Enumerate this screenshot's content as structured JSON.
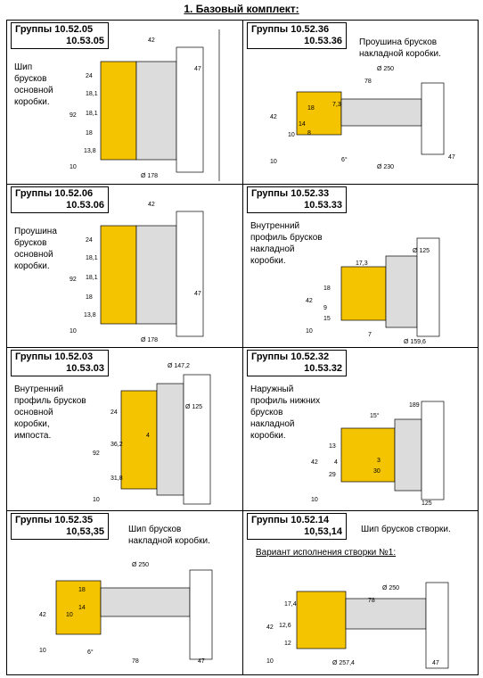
{
  "title": "1. Базовый комплект:",
  "panels": [
    {
      "group": "Группы 10.52.05",
      "group2": "10.53.05",
      "desc": [
        "Шип",
        "брусков",
        "основной",
        "коробки."
      ],
      "dims": [
        "42",
        "47",
        "24",
        "18,1",
        "18,1",
        "18",
        "13,8",
        "92",
        "10",
        "Ø 178"
      ]
    },
    {
      "group": "Группы 10.52.36",
      "group2": "10.53.36",
      "desc": [
        "Проушина брусков",
        "накладной коробки."
      ],
      "dims": [
        "Ø 250",
        "78",
        "7,3",
        "18",
        "14",
        "10",
        "8",
        "42",
        "10",
        "6°",
        "Ø 230",
        "47"
      ]
    },
    {
      "group": "Группы 10.52.06",
      "group2": "10.53.06",
      "desc": [
        "Проушина",
        "брусков",
        "основной",
        "коробки."
      ],
      "dims": [
        "42",
        "47",
        "24",
        "18,1",
        "18,1",
        "18",
        "13,8",
        "92",
        "10",
        "Ø 178"
      ]
    },
    {
      "group": "Группы 10.52.33",
      "group2": "10.53.33",
      "desc": [
        "Внутренний",
        "профиль брусков",
        "накладной",
        "коробки."
      ],
      "dims": [
        "Ø 125",
        "17,3",
        "18",
        "9",
        "15",
        "42",
        "10",
        "7",
        "Ø 159,6"
      ]
    },
    {
      "group": "Группы 10.52.03",
      "group2": "10.53.03",
      "desc": [
        "Внутренний",
        "профиль брусков",
        "основной",
        "коробки,",
        "импоста."
      ],
      "dims": [
        "Ø 147,2",
        "Ø 125",
        "24",
        "36,2",
        "4",
        "31,8",
        "92",
        "10"
      ]
    },
    {
      "group": "Группы 10.52.32",
      "group2": "10.53.32",
      "desc": [
        "Наружный",
        "профиль нижних",
        "брусков",
        "накладной",
        "коробки."
      ],
      "dims": [
        "15°",
        "189",
        "13",
        "4",
        "29",
        "3",
        "30",
        "42",
        "10",
        "125"
      ]
    },
    {
      "group": "Группы 10.52.35",
      "group2": "10,53,35",
      "desc": [
        "Шип брусков",
        "накладной коробки."
      ],
      "dims": [
        "Ø 250",
        "18",
        "14",
        "10",
        "42",
        "10",
        "6°",
        "78",
        "47"
      ]
    },
    {
      "group": "Группы 10.52.14",
      "group2": "10,53,14",
      "desc": [
        "Шип брусков створки."
      ],
      "variant": "Вариант исполнения створки №1:",
      "dims": [
        "Ø 250",
        "78",
        "17,4",
        "12,6",
        "12",
        "42",
        "10",
        "Ø 257,4",
        "47"
      ]
    }
  ],
  "colors": {
    "wood": "#f5c400",
    "steel": "#dcdcdc",
    "line": "#000000"
  }
}
